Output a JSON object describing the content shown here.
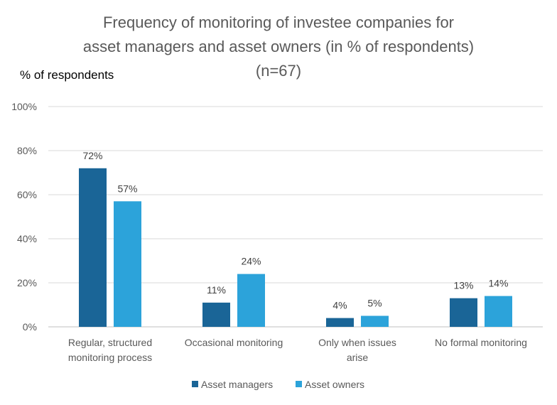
{
  "chart_data": {
    "type": "bar",
    "title": [
      "Frequency of monitoring of investee companies for",
      "asset managers and asset owners (in % of respondents)",
      "(n=67)"
    ],
    "ylabel": "% of respondents",
    "xlabel": "",
    "ylim": [
      0,
      100
    ],
    "yticks": [
      0,
      20,
      40,
      60,
      80,
      100
    ],
    "ytick_labels": [
      "0%",
      "20%",
      "40%",
      "60%",
      "80%",
      "100%"
    ],
    "grid": true,
    "legend_position": "bottom",
    "categories": [
      [
        "Regular, structured",
        "monitoring process"
      ],
      [
        "Occasional monitoring"
      ],
      [
        "Only when issues",
        "arise"
      ],
      [
        "No formal monitoring"
      ]
    ],
    "series": [
      {
        "name": "Asset managers",
        "color": "#1A6597",
        "values": [
          72,
          11,
          4,
          13
        ],
        "labels": [
          "72%",
          "11%",
          "4%",
          "13%"
        ]
      },
      {
        "name": "Asset owners",
        "color": "#2CA3DA",
        "values": [
          57,
          24,
          5,
          14
        ],
        "labels": [
          "57%",
          "24%",
          "5%",
          "14%"
        ]
      }
    ]
  }
}
